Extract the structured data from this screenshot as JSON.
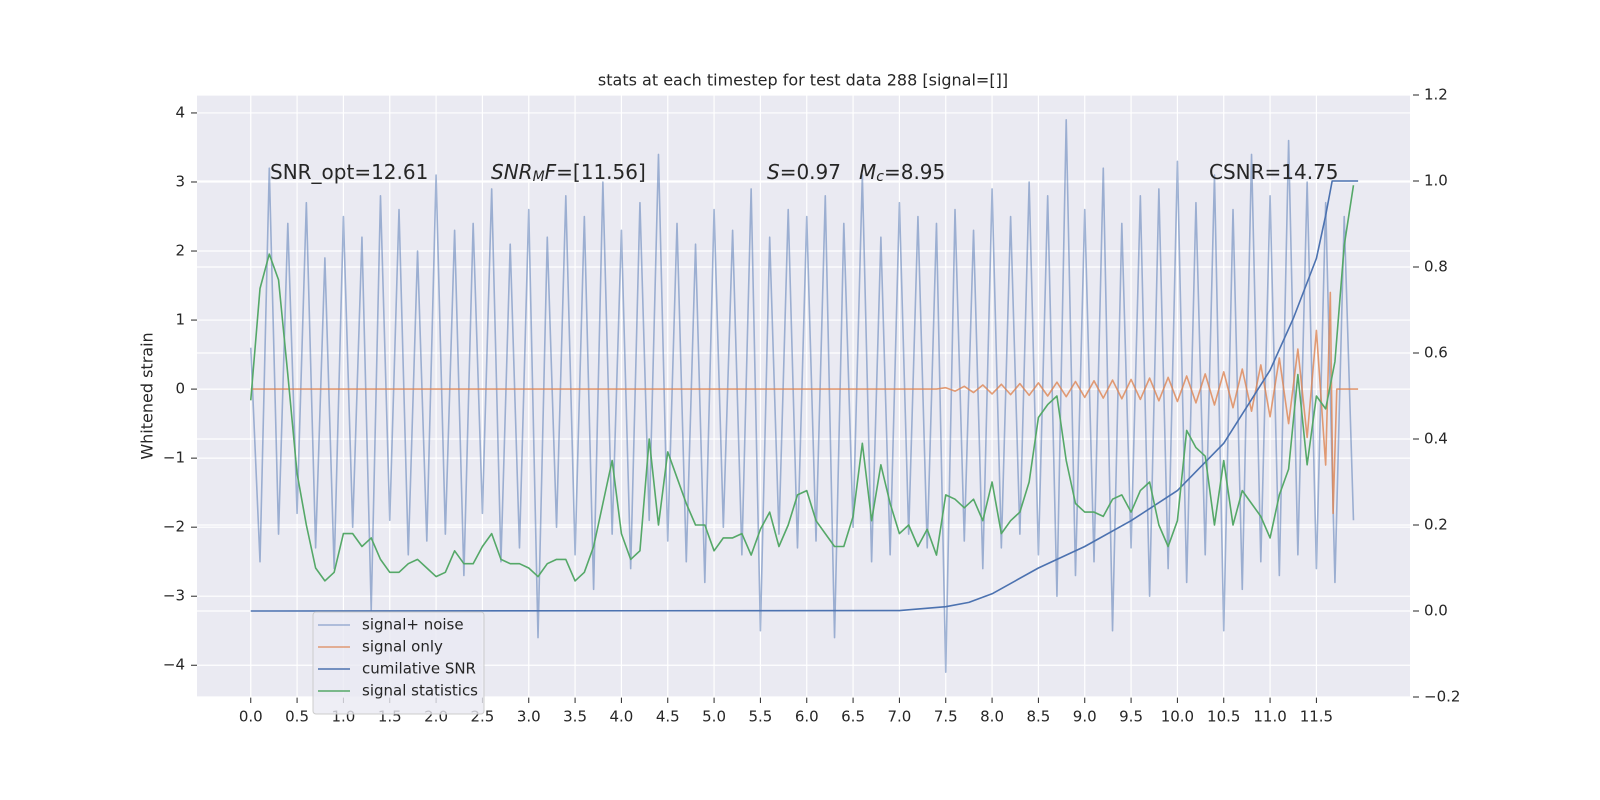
{
  "chart_data": {
    "type": "line",
    "title": "stats at each timestep for test data 288 [signal=[]]",
    "y_label": "Whitened strain",
    "grid": true,
    "legend": "lower left",
    "annotations": [
      [
        {
          "text": "SNR_opt=12.61",
          "style": "normal"
        }
      ],
      [
        {
          "text": "SNR",
          "style": "italic"
        },
        {
          "text": "M",
          "style": "italic-sub"
        },
        {
          "text": "F",
          "style": "italic"
        },
        {
          "text": "=[11.56]",
          "style": "normal"
        }
      ],
      [
        {
          "text": "S",
          "style": "italic"
        },
        {
          "text": "=0.97",
          "style": "normal"
        }
      ],
      [
        {
          "text": "M",
          "style": "italic"
        },
        {
          "text": "c",
          "style": "italic-sub"
        },
        {
          "text": "=8.95",
          "style": "normal"
        }
      ],
      [
        {
          "text": "CSNR=14.75",
          "style": "normal"
        }
      ]
    ],
    "xlim": [
      -0.58,
      12.51
    ],
    "ylim": [
      -4.46,
      4.26
    ],
    "y2lim": [
      -0.2,
      1.2
    ],
    "xticks": [
      {
        "value": 0,
        "label": "0.0"
      },
      0.5,
      {
        "value": 1,
        "label": "1.0"
      },
      1.5,
      {
        "value": 2,
        "label": "2.0"
      },
      2.5,
      {
        "value": 3,
        "label": "3.0"
      },
      3.5,
      {
        "value": 4,
        "label": "4.0"
      },
      4.5,
      {
        "value": 5,
        "label": "5.0"
      },
      5.5,
      {
        "value": 6,
        "label": "6.0"
      },
      6.5,
      {
        "value": 7,
        "label": "7.0"
      },
      7.5,
      {
        "value": 8,
        "label": "8.0"
      },
      8.5,
      {
        "value": 9,
        "label": "9.0"
      },
      9.5,
      {
        "value": 10,
        "label": "10.0"
      },
      10.5,
      {
        "value": 11,
        "label": "11.0"
      },
      11.5
    ],
    "yticks": [
      {
        "value": -4,
        "label": "−4"
      },
      {
        "value": -3,
        "label": "−3"
      },
      {
        "value": -2,
        "label": "−2"
      },
      {
        "value": -1,
        "label": "−1"
      },
      0,
      1,
      2,
      3,
      4
    ],
    "y2ticks": [
      {
        "value": -0.2,
        "label": "−0.2"
      },
      {
        "value": 0,
        "label": "0.0"
      },
      0.2,
      0.4,
      0.6,
      0.8,
      {
        "value": 1,
        "label": "1.0"
      },
      1.2
    ],
    "x": [
      0,
      0.1,
      0.2,
      0.3,
      0.4,
      0.5,
      0.6,
      0.7,
      0.8,
      0.9,
      1,
      1.1,
      1.2,
      1.3,
      1.4,
      1.5,
      1.6,
      1.7,
      1.8,
      1.9,
      2,
      2.1,
      2.2,
      2.3,
      2.4,
      2.5,
      2.6,
      2.7,
      2.8,
      2.9,
      3,
      3.1,
      3.2,
      3.3,
      3.4,
      3.5,
      3.6,
      3.7,
      3.8,
      3.9,
      4,
      4.1,
      4.2,
      4.3,
      4.4,
      4.5,
      4.6,
      4.7,
      4.8,
      4.9,
      5,
      5.1,
      5.2,
      5.3,
      5.4,
      5.5,
      5.6,
      5.7,
      5.8,
      5.9,
      6,
      6.1,
      6.2,
      6.3,
      6.4,
      6.5,
      6.6,
      6.7,
      6.8,
      6.9,
      7,
      7.1,
      7.2,
      7.3,
      7.4,
      7.5,
      7.6,
      7.7,
      7.8,
      7.9,
      8,
      8.1,
      8.2,
      8.3,
      8.4,
      8.5,
      8.6,
      8.7,
      8.8,
      8.9,
      9,
      9.1,
      9.2,
      9.3,
      9.4,
      9.5,
      9.6,
      9.7,
      9.8,
      9.9,
      10,
      10.1,
      10.2,
      10.3,
      10.4,
      10.5,
      10.6,
      10.7,
      10.8,
      10.9,
      11,
      11.1,
      11.2,
      11.3,
      11.4,
      11.5,
      11.6,
      11.7,
      11.8,
      11.9
    ],
    "series": [
      {
        "name": "signal+ noise",
        "color": "#4c72b0",
        "opacity": 0.5,
        "values": [
          0.6,
          -2.5,
          3.2,
          -2.1,
          2.4,
          -1.8,
          2.7,
          -2.3,
          1.9,
          -2.6,
          2.5,
          -2.0,
          2.2,
          -3.2,
          2.8,
          -1.9,
          2.6,
          -2.4,
          2.0,
          -2.2,
          3.1,
          -2.1,
          2.3,
          -2.7,
          2.4,
          -1.8,
          2.9,
          -2.5,
          2.1,
          -2.3,
          2.6,
          -3.6,
          2.2,
          -2.0,
          2.8,
          -2.4,
          2.5,
          -2.9,
          3.0,
          -2.1,
          2.3,
          -2.6,
          2.7,
          -1.9,
          3.4,
          -2.2,
          2.4,
          -2.5,
          2.1,
          -2.8,
          2.6,
          -2.0,
          2.3,
          -2.4,
          2.9,
          -3.5,
          2.2,
          -2.1,
          2.6,
          -2.3,
          2.5,
          -2.2,
          2.8,
          -3.6,
          2.4,
          -2.0,
          3.1,
          -2.5,
          2.2,
          -2.4,
          2.7,
          -2.1,
          2.5,
          -2.3,
          2.4,
          -4.1,
          2.6,
          -2.2,
          2.3,
          -2.6,
          2.9,
          -2.3,
          2.5,
          -2.1,
          3.0,
          -2.4,
          2.8,
          -3.0,
          3.9,
          -2.7,
          2.6,
          -2.5,
          3.2,
          -3.5,
          2.4,
          -2.3,
          2.8,
          -3.0,
          2.9,
          -2.6,
          3.3,
          -2.8,
          2.7,
          -2.4,
          3.1,
          -3.5,
          2.6,
          -2.9,
          3.4,
          -2.5,
          2.8,
          -2.7,
          3.6,
          -2.4,
          3.0,
          -2.6,
          2.7,
          -2.8,
          2.5,
          -1.9
        ]
      },
      {
        "name": "signal only",
        "color": "#dd8452",
        "opacity": 0.8,
        "x": [
          0,
          7.4,
          7.5,
          7.6,
          7.7,
          7.8,
          7.9,
          8,
          8.1,
          8.2,
          8.3,
          8.4,
          8.5,
          8.6,
          8.7,
          8.8,
          8.9,
          9,
          9.1,
          9.2,
          9.3,
          9.4,
          9.5,
          9.6,
          9.7,
          9.8,
          9.9,
          10,
          10.1,
          10.2,
          10.3,
          10.4,
          10.5,
          10.6,
          10.7,
          10.8,
          10.9,
          11,
          11.1,
          11.2,
          11.3,
          11.4,
          11.5,
          11.6,
          11.65,
          11.68,
          11.72,
          11.95
        ],
        "values": [
          0,
          0,
          0.02,
          -0.03,
          0.04,
          -0.05,
          0.06,
          -0.07,
          0.07,
          -0.08,
          0.08,
          -0.09,
          0.09,
          -0.1,
          0.1,
          -0.11,
          0.11,
          -0.12,
          0.12,
          -0.13,
          0.13,
          -0.14,
          0.14,
          -0.15,
          0.16,
          -0.17,
          0.17,
          -0.18,
          0.19,
          -0.2,
          0.22,
          -0.23,
          0.25,
          -0.27,
          0.29,
          -0.32,
          0.35,
          -0.4,
          0.45,
          -0.5,
          0.58,
          -0.7,
          0.85,
          -1.1,
          1.4,
          -1.8,
          0,
          0
        ]
      },
      {
        "name": "cumilative SNR",
        "color": "#4c72b0",
        "opacity": 1,
        "axis": "y2",
        "x": [
          0,
          7,
          7.5,
          7.75,
          8,
          8.25,
          8.5,
          9,
          9.5,
          10,
          10.5,
          11,
          11.25,
          11.5,
          11.6,
          11.67,
          11.95
        ],
        "values": [
          0,
          0.001,
          0.01,
          0.02,
          0.04,
          0.07,
          0.1,
          0.15,
          0.21,
          0.28,
          0.39,
          0.56,
          0.68,
          0.82,
          0.92,
          1.0,
          1.0
        ]
      },
      {
        "name": "signal statistics",
        "color": "#55a868",
        "opacity": 1,
        "axis": "y2",
        "values": [
          0.49,
          0.75,
          0.83,
          0.77,
          0.55,
          0.32,
          0.2,
          0.1,
          0.07,
          0.09,
          0.18,
          0.18,
          0.15,
          0.17,
          0.12,
          0.09,
          0.09,
          0.11,
          0.12,
          0.1,
          0.08,
          0.09,
          0.14,
          0.11,
          0.11,
          0.15,
          0.18,
          0.12,
          0.11,
          0.11,
          0.1,
          0.08,
          0.11,
          0.12,
          0.12,
          0.07,
          0.09,
          0.15,
          0.25,
          0.35,
          0.18,
          0.12,
          0.14,
          0.4,
          0.2,
          0.37,
          0.31,
          0.25,
          0.2,
          0.2,
          0.14,
          0.17,
          0.17,
          0.18,
          0.13,
          0.19,
          0.23,
          0.15,
          0.2,
          0.27,
          0.28,
          0.21,
          0.18,
          0.15,
          0.15,
          0.22,
          0.39,
          0.21,
          0.34,
          0.25,
          0.18,
          0.2,
          0.15,
          0.19,
          0.13,
          0.27,
          0.26,
          0.24,
          0.26,
          0.21,
          0.3,
          0.18,
          0.21,
          0.23,
          0.3,
          0.45,
          0.48,
          0.5,
          0.35,
          0.25,
          0.23,
          0.23,
          0.22,
          0.26,
          0.27,
          0.23,
          0.28,
          0.3,
          0.2,
          0.15,
          0.21,
          0.42,
          0.38,
          0.36,
          0.2,
          0.35,
          0.2,
          0.28,
          0.25,
          0.22,
          0.17,
          0.27,
          0.33,
          0.55,
          0.34,
          0.5,
          0.47,
          0.58,
          0.85,
          0.99
        ]
      }
    ]
  }
}
